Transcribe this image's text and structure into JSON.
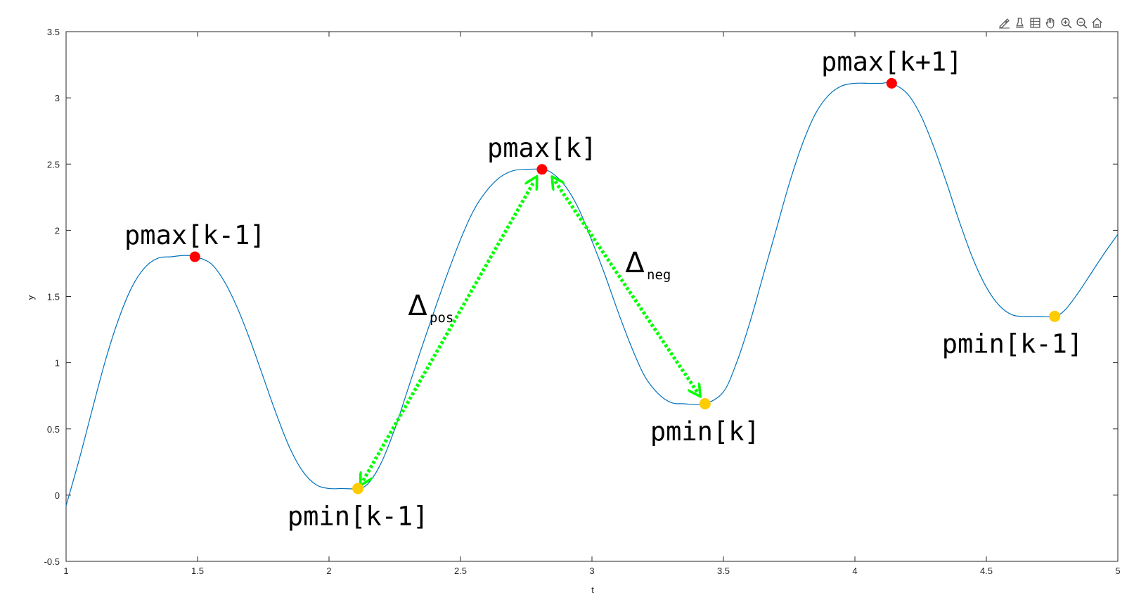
{
  "toolbar": {
    "buttons": [
      {
        "name": "data-tips-icon",
        "icon": "pen-icon"
      },
      {
        "name": "brush-icon",
        "icon": "brush-icon"
      },
      {
        "name": "data-cursor-icon",
        "icon": "table-icon"
      },
      {
        "name": "pan-icon",
        "icon": "hand-icon"
      },
      {
        "name": "zoom-in-icon",
        "icon": "zoom-in-icon"
      },
      {
        "name": "zoom-out-icon",
        "icon": "zoom-out-icon"
      },
      {
        "name": "home-icon",
        "icon": "home-icon"
      }
    ]
  },
  "chart_data": {
    "type": "line",
    "title": "",
    "xlabel": "t",
    "ylabel": "y",
    "xlim": [
      1,
      5
    ],
    "ylim": [
      -0.5,
      3.5
    ],
    "xticks": [
      1,
      1.5,
      2,
      2.5,
      3,
      3.5,
      4,
      4.5,
      5
    ],
    "xtick_labels": [
      "1",
      "1.5",
      "2",
      "2.5",
      "3",
      "3.5",
      "4",
      "4.5",
      "5"
    ],
    "yticks": [
      -0.5,
      0,
      0.5,
      1,
      1.5,
      2,
      2.5,
      3,
      3.5
    ],
    "ytick_labels": [
      "-0.5",
      "0",
      "0.5",
      "1",
      "1.5",
      "2",
      "2.5",
      "3",
      "3.5"
    ],
    "grid": false,
    "line_color": "#0072bd",
    "series": [
      {
        "x": [
          1.0,
          1.05,
          1.1,
          1.15,
          1.2,
          1.25,
          1.3,
          1.35,
          1.4,
          1.45,
          1.49,
          1.55,
          1.6,
          1.65,
          1.7,
          1.75,
          1.8,
          1.85,
          1.9,
          1.95,
          2.0,
          2.05,
          2.11,
          2.15,
          2.2,
          2.25,
          2.3,
          2.35,
          2.4,
          2.45,
          2.5,
          2.55,
          2.6,
          2.65,
          2.7,
          2.75,
          2.81,
          2.85,
          2.9,
          2.95,
          3.0,
          3.05,
          3.1,
          3.15,
          3.2,
          3.25,
          3.3,
          3.35,
          3.43,
          3.5,
          3.55,
          3.6,
          3.65,
          3.7,
          3.75,
          3.8,
          3.85,
          3.9,
          3.95,
          4.0,
          4.05,
          4.1,
          4.14,
          4.2,
          4.25,
          4.3,
          4.35,
          4.4,
          4.45,
          4.5,
          4.55,
          4.6,
          4.65,
          4.7,
          4.76,
          4.8,
          4.85,
          4.9,
          4.95,
          5.0
        ],
        "y": [
          -0.08,
          0.27,
          0.65,
          1.02,
          1.33,
          1.57,
          1.72,
          1.79,
          1.8,
          1.81,
          1.8,
          1.75,
          1.62,
          1.42,
          1.17,
          0.89,
          0.61,
          0.36,
          0.18,
          0.08,
          0.05,
          0.05,
          0.05,
          0.09,
          0.25,
          0.5,
          0.8,
          1.1,
          1.39,
          1.67,
          1.93,
          2.15,
          2.3,
          2.4,
          2.45,
          2.46,
          2.46,
          2.43,
          2.33,
          2.16,
          1.92,
          1.66,
          1.38,
          1.12,
          0.9,
          0.77,
          0.7,
          0.69,
          0.69,
          0.78,
          1.0,
          1.3,
          1.65,
          2.0,
          2.35,
          2.65,
          2.88,
          3.02,
          3.09,
          3.11,
          3.11,
          3.11,
          3.11,
          3.03,
          2.87,
          2.63,
          2.35,
          2.05,
          1.78,
          1.57,
          1.43,
          1.36,
          1.35,
          1.35,
          1.35,
          1.4,
          1.53,
          1.68,
          1.83,
          1.97
        ]
      }
    ],
    "maxima": {
      "color": "#ff0000",
      "points": [
        {
          "x": 1.49,
          "y": 1.8,
          "label": "pmax[k-1]"
        },
        {
          "x": 2.81,
          "y": 2.46,
          "label": "pmax[k]"
        },
        {
          "x": 4.14,
          "y": 3.11,
          "label": "pmax[k+1]"
        }
      ]
    },
    "minima": {
      "color": "#ffcc00",
      "points": [
        {
          "x": 2.11,
          "y": 0.05,
          "label": "pmin[k-1]"
        },
        {
          "x": 3.43,
          "y": 0.69,
          "label": "pmin[k]"
        },
        {
          "x": 4.76,
          "y": 1.35,
          "label": "pmin[k-1]"
        }
      ]
    },
    "arrows": {
      "color": "#00ff00",
      "style": "dotted double-headed",
      "items": [
        {
          "from": [
            2.13,
            0.11
          ],
          "to": [
            2.78,
            2.37
          ],
          "label": "Δ",
          "subscript": "pos"
        },
        {
          "from": [
            2.86,
            2.37
          ],
          "to": [
            3.4,
            0.78
          ],
          "label": "Δ",
          "subscript": "neg"
        }
      ]
    }
  }
}
